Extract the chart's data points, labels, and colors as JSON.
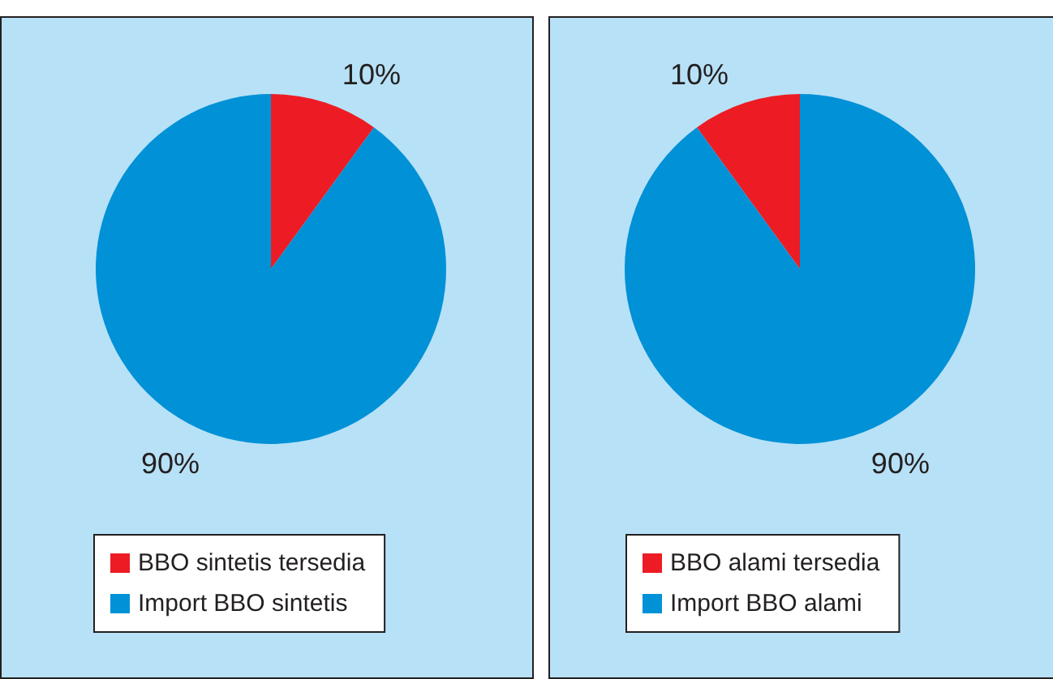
{
  "chart_data": [
    {
      "type": "pie",
      "categories": [
        "BBO sintetis tersedia",
        "Import BBO sintetis"
      ],
      "values": [
        10,
        90
      ],
      "colors": [
        "#ed1c24",
        "#0091d7"
      ],
      "value_labels": [
        "10%",
        "90%"
      ],
      "legend": "bottom"
    },
    {
      "type": "pie",
      "categories": [
        "BBO alami tersedia",
        "Import BBO alami"
      ],
      "values": [
        10,
        90
      ],
      "colors": [
        "#ed1c24",
        "#0091d7"
      ],
      "value_labels": [
        "10%",
        "90%"
      ],
      "legend": "bottom"
    }
  ]
}
